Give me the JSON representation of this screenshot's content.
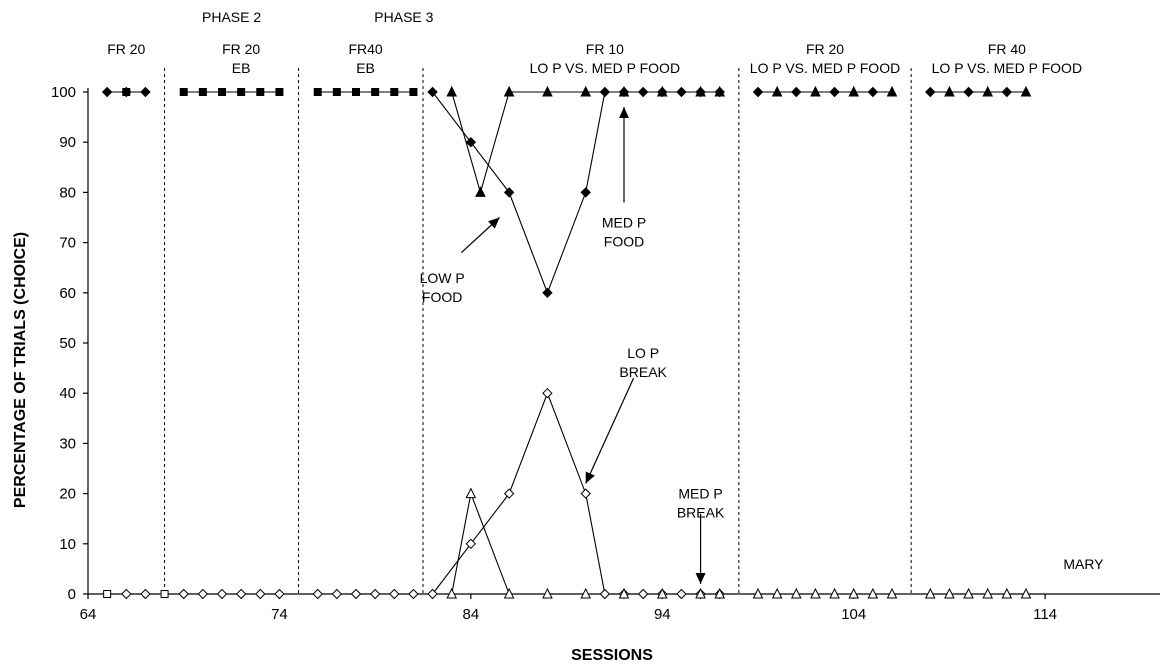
{
  "chart_data": {
    "type": "line",
    "title": "",
    "xlabel": "SESSIONS",
    "ylabel": "PERCENTAGE OF TRIALS (CHOICE)",
    "xlim": [
      64,
      120
    ],
    "ylim": [
      0,
      100
    ],
    "xticks": [
      64,
      74,
      84,
      94,
      104,
      114
    ],
    "yticks": [
      0,
      10,
      20,
      30,
      40,
      50,
      60,
      70,
      80,
      90,
      100
    ],
    "grid": false,
    "phase_lines": [
      68,
      75,
      81.5,
      98,
      107
    ],
    "phase_labels": [
      {
        "lines": [
          "FR 20"
        ],
        "x": 66
      },
      {
        "lines": [
          "PHASE 2"
        ],
        "x": 71.5,
        "upper": true
      },
      {
        "lines": [
          "FR 20",
          "EB"
        ],
        "x": 72
      },
      {
        "lines": [
          "PHASE 3"
        ],
        "x": 80.5,
        "upper": true
      },
      {
        "lines": [
          "FR40",
          "EB"
        ],
        "x": 78.5
      },
      {
        "lines": [
          "FR 10",
          "LO P VS. MED P FOOD"
        ],
        "x": 91
      },
      {
        "lines": [
          "FR 20",
          "LO P VS. MED P FOOD"
        ],
        "x": 102.5
      },
      {
        "lines": [
          "FR 40",
          "LO P VS. MED P FOOD"
        ],
        "x": 112
      }
    ],
    "series": [
      {
        "marker": "diamond-filled",
        "points": [
          [
            65,
            100
          ],
          [
            66,
            100
          ],
          [
            67,
            100
          ]
        ]
      },
      {
        "marker": "square-filled",
        "points": [
          [
            66,
            100
          ]
        ]
      },
      {
        "marker": "square-filled",
        "points": [
          [
            69,
            100
          ],
          [
            70,
            100
          ],
          [
            71,
            100
          ],
          [
            72,
            100
          ],
          [
            73,
            100
          ],
          [
            74,
            100
          ]
        ]
      },
      {
        "marker": "square-filled",
        "points": [
          [
            76,
            100
          ],
          [
            77,
            100
          ],
          [
            78,
            100
          ],
          [
            79,
            100
          ],
          [
            80,
            100
          ],
          [
            81,
            100
          ]
        ]
      },
      {
        "marker": "diamond-filled",
        "points": [
          [
            82,
            100
          ],
          [
            84,
            90
          ],
          [
            86,
            80
          ],
          [
            88,
            60
          ],
          [
            90,
            80
          ],
          [
            91,
            100
          ],
          [
            92,
            100
          ],
          [
            93,
            100
          ],
          [
            94,
            100
          ],
          [
            95,
            100
          ],
          [
            96,
            100
          ],
          [
            97,
            100
          ]
        ]
      },
      {
        "marker": "triangle-filled",
        "points": [
          [
            83,
            100
          ],
          [
            84.5,
            80
          ],
          [
            86,
            100
          ],
          [
            88,
            100
          ],
          [
            90,
            100
          ],
          [
            92,
            100
          ],
          [
            94,
            100
          ],
          [
            96,
            100
          ],
          [
            97,
            100
          ]
        ]
      },
      {
        "marker": "diamond-filled",
        "points": [
          [
            99,
            100
          ],
          [
            101,
            100
          ],
          [
            103,
            100
          ],
          [
            105,
            100
          ]
        ]
      },
      {
        "marker": "triangle-filled",
        "points": [
          [
            100,
            100
          ],
          [
            102,
            100
          ],
          [
            104,
            100
          ],
          [
            106,
            100
          ]
        ]
      },
      {
        "marker": "diamond-filled",
        "points": [
          [
            108,
            100
          ],
          [
            110,
            100
          ],
          [
            112,
            100
          ]
        ]
      },
      {
        "marker": "triangle-filled",
        "points": [
          [
            109,
            100
          ],
          [
            111,
            100
          ],
          [
            113,
            100
          ]
        ]
      },
      {
        "marker": "square-open",
        "points": [
          [
            65,
            0
          ],
          [
            68,
            0
          ]
        ]
      },
      {
        "marker": "diamond-open",
        "points": [
          [
            66,
            0
          ],
          [
            67,
            0
          ]
        ]
      },
      {
        "marker": "diamond-open",
        "points": [
          [
            69,
            0
          ],
          [
            70,
            0
          ],
          [
            71,
            0
          ],
          [
            72,
            0
          ],
          [
            73,
            0
          ],
          [
            74,
            0
          ]
        ]
      },
      {
        "marker": "diamond-open",
        "points": [
          [
            76,
            0
          ],
          [
            77,
            0
          ],
          [
            78,
            0
          ],
          [
            79,
            0
          ],
          [
            80,
            0
          ],
          [
            81,
            0
          ]
        ]
      },
      {
        "marker": "diamond-open",
        "points": [
          [
            82,
            0
          ],
          [
            84,
            10
          ],
          [
            86,
            20
          ],
          [
            88,
            40
          ],
          [
            90,
            20
          ],
          [
            91,
            0
          ],
          [
            92,
            0
          ],
          [
            93,
            0
          ],
          [
            94,
            0
          ],
          [
            95,
            0
          ],
          [
            96,
            0
          ],
          [
            97,
            0
          ]
        ]
      },
      {
        "marker": "triangle-open",
        "points": [
          [
            83,
            0
          ],
          [
            84,
            20
          ],
          [
            86,
            0
          ],
          [
            88,
            0
          ],
          [
            90,
            0
          ],
          [
            92,
            0
          ],
          [
            94,
            0
          ],
          [
            96,
            0
          ],
          [
            97,
            0
          ]
        ]
      },
      {
        "marker": "triangle-open",
        "points": [
          [
            99,
            0
          ],
          [
            100,
            0
          ],
          [
            101,
            0
          ],
          [
            102,
            0
          ],
          [
            103,
            0
          ],
          [
            104,
            0
          ],
          [
            105,
            0
          ],
          [
            106,
            0
          ]
        ]
      },
      {
        "marker": "triangle-open",
        "points": [
          [
            108,
            0
          ],
          [
            109,
            0
          ],
          [
            110,
            0
          ],
          [
            111,
            0
          ],
          [
            112,
            0
          ],
          [
            113,
            0
          ]
        ]
      }
    ],
    "annotations": [
      {
        "lines": [
          "LOW P",
          "FOOD"
        ],
        "x": 82.5,
        "y": 62
      },
      {
        "lines": [
          "MED P",
          "FOOD"
        ],
        "x": 92,
        "y": 73
      },
      {
        "lines": [
          "LO P",
          "BREAK"
        ],
        "x": 93,
        "y": 47
      },
      {
        "lines": [
          "MED P",
          "BREAK"
        ],
        "x": 96,
        "y": 19
      },
      {
        "lines": [
          "MARY"
        ],
        "x": 116,
        "y": 5
      }
    ]
  }
}
